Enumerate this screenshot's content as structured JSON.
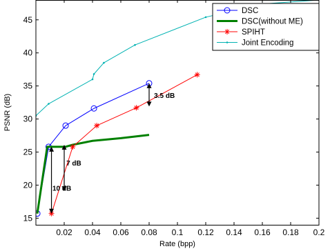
{
  "chart_data": {
    "type": "line",
    "title": "",
    "xlabel": "Rate (bpp)",
    "ylabel": "PSNR (dB)",
    "xlim": [
      0,
      0.2
    ],
    "ylim": [
      14,
      48
    ],
    "xticks": [
      0.02,
      0.04,
      0.06,
      0.08,
      0.1,
      0.12,
      0.14,
      0.16,
      0.18,
      0.2
    ],
    "xtick_labels": [
      "0.02",
      "0.04",
      "0.06",
      "0.08",
      "0.1",
      "0.12",
      "0.14",
      "0.16",
      "0.18",
      "0.2"
    ],
    "yticks": [
      15,
      20,
      25,
      30,
      35,
      40,
      45
    ],
    "ytick_labels": [
      "15",
      "20",
      "25",
      "30",
      "35",
      "40",
      "45"
    ],
    "grid": false,
    "legend_position": "top-right",
    "series": [
      {
        "name": "DSC",
        "color": "#0000ff",
        "marker": "circle",
        "line_width": 1,
        "x": [
          0.001,
          0.009,
          0.021,
          0.041,
          0.08
        ],
        "y": [
          15.7,
          25.8,
          29.0,
          31.6,
          35.4
        ]
      },
      {
        "name": "DSC(without ME)",
        "color": "#008000",
        "marker": "none",
        "line_width": 3,
        "x": [
          0.001,
          0.008,
          0.011,
          0.021,
          0.026,
          0.04,
          0.06,
          0.08
        ],
        "y": [
          15.7,
          25.8,
          25.8,
          25.8,
          26.1,
          26.7,
          27.1,
          27.6
        ]
      },
      {
        "name": "SPIHT",
        "color": "#ff0000",
        "marker": "star",
        "line_width": 1,
        "x": [
          0.011,
          0.026,
          0.043,
          0.071,
          0.114
        ],
        "y": [
          15.7,
          25.8,
          29.0,
          31.7,
          36.7
        ]
      },
      {
        "name": "Joint Encoding",
        "color": "#00b2b2",
        "marker": "point",
        "line_width": 1,
        "x": [
          0.0,
          0.009,
          0.04,
          0.041,
          0.048,
          0.07,
          0.12,
          0.16,
          0.2
        ],
        "y": [
          30.5,
          32.3,
          36.0,
          36.8,
          38.5,
          41.2,
          45.4,
          47.4,
          48.0
        ]
      }
    ],
    "annotations": [
      {
        "text": "3.5 dB",
        "x": 0.08,
        "y_from": 31.9,
        "y_to": 35.4,
        "label_x": 0.0835,
        "label_y": 33.6
      },
      {
        "text": "7 dB",
        "x": 0.02,
        "y_from": 19.1,
        "y_to": 26.1,
        "label_x": 0.0215,
        "label_y": 23.4
      },
      {
        "text": "10 dB",
        "x": 0.011,
        "y_from": 15.7,
        "y_to": 25.8,
        "label_x": 0.0117,
        "label_y": 19.6
      }
    ]
  }
}
